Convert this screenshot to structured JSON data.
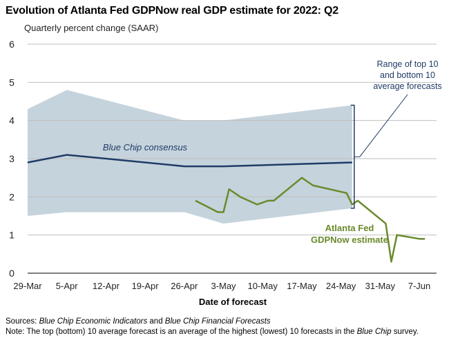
{
  "title": "Evolution of Atlanta Fed GDPNow real GDP estimate for 2022: Q2",
  "subtitle": "Quarterly percent change (SAAR)",
  "sources": {
    "label": "Sources:",
    "part1": "Blue Chip Economic Indicators",
    "part2": " and ",
    "part3": "Blue Chip Financial Forecasts"
  },
  "note": {
    "label": "Note:",
    "part1": " The top (bottom) 10 average forecast is an average of the highest (lowest) 10 forecasts in the ",
    "part2": "Blue Chip",
    "part3": " survey."
  },
  "chart_data": {
    "type": "line",
    "xlabel": "Date of forecast",
    "ylabel": "",
    "x_ticks": [
      "29-Mar",
      "5-Apr",
      "12-Apr",
      "19-Apr",
      "26-Apr",
      "3-May",
      "10-May",
      "17-May",
      "24-May",
      "31-May",
      "7-Jun"
    ],
    "ylim": [
      0,
      6
    ],
    "y_ticks": [
      0,
      1,
      2,
      3,
      4,
      5,
      6
    ],
    "grid": "horizontal",
    "colors": {
      "range": "#c5d3dc",
      "consensus": "#1f3b66",
      "gdpnow": "#6a8a2b",
      "annotation": "#1f3b66"
    },
    "series": [
      {
        "name": "Blue Chip consensus",
        "points": [
          [
            "29-Mar",
            2.9
          ],
          [
            "5-Apr",
            3.1
          ],
          [
            "26-Apr",
            2.8
          ],
          [
            "3-May",
            2.8
          ],
          [
            "26-May",
            2.9
          ]
        ]
      },
      {
        "name": "Atlanta Fed GDPNow estimate",
        "points": [
          [
            "28-Apr",
            1.9
          ],
          [
            "2-May",
            1.6
          ],
          [
            "3-May",
            1.6
          ],
          [
            "4-May",
            2.2
          ],
          [
            "6-May",
            2.0
          ],
          [
            "9-May",
            1.8
          ],
          [
            "11-May",
            1.9
          ],
          [
            "12-May",
            1.9
          ],
          [
            "17-May",
            2.5
          ],
          [
            "19-May",
            2.3
          ],
          [
            "25-May",
            2.1
          ],
          [
            "26-May",
            1.8
          ],
          [
            "27-May",
            1.9
          ],
          [
            "1-Jun",
            1.3
          ],
          [
            "2-Jun",
            0.3
          ],
          [
            "3-Jun",
            1.0
          ],
          [
            "7-Jun",
            0.9
          ],
          [
            "8-Jun",
            0.9
          ]
        ]
      }
    ],
    "range": {
      "name": "Range of top 10 and bottom 10 average forecasts",
      "top": [
        [
          "29-Mar",
          4.3
        ],
        [
          "5-Apr",
          4.8
        ],
        [
          "26-Apr",
          4.0
        ],
        [
          "3-May",
          4.0
        ],
        [
          "26-May",
          4.4
        ]
      ],
      "bottom": [
        [
          "29-Mar",
          1.5
        ],
        [
          "5-Apr",
          1.6
        ],
        [
          "26-Apr",
          1.6
        ],
        [
          "3-May",
          1.3
        ],
        [
          "26-May",
          1.7
        ]
      ]
    },
    "annotations": [
      {
        "lines": [
          "Range of top 10",
          "and bottom 10",
          "average forecasts"
        ]
      },
      {
        "lines": [
          "Blue Chip consensus"
        ]
      },
      {
        "lines": [
          "Atlanta Fed",
          "GDPNow estimate"
        ]
      }
    ]
  }
}
